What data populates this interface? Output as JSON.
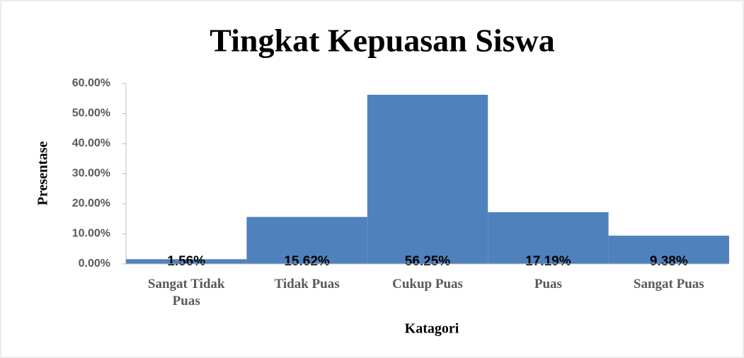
{
  "chart_data": {
    "type": "bar",
    "title": "Tingkat Kepuasan Siswa",
    "categories": [
      "Sangat Tidak Puas",
      "Tidak Puas",
      "Cukup Puas",
      "Puas",
      "Sangat Puas"
    ],
    "values": [
      1.56,
      15.62,
      56.25,
      17.19,
      9.38
    ],
    "value_labels": [
      "1.56%",
      "15.62%",
      "56.25%",
      "17.19%",
      "9.38%"
    ],
    "color": "#4f81bd",
    "xlabel": "Katagori",
    "ylabel": "Presentase",
    "ylim": [
      0,
      60
    ],
    "yticks": [
      {
        "value": 0,
        "label": "0.00%"
      },
      {
        "value": 10,
        "label": "10.00%"
      },
      {
        "value": 20,
        "label": "20.00%"
      },
      {
        "value": 30,
        "label": "30.00%"
      },
      {
        "value": 40,
        "label": "40.00%"
      },
      {
        "value": 50,
        "label": "50.00%"
      },
      {
        "value": 60,
        "label": "60.00%"
      }
    ],
    "grid": false
  }
}
